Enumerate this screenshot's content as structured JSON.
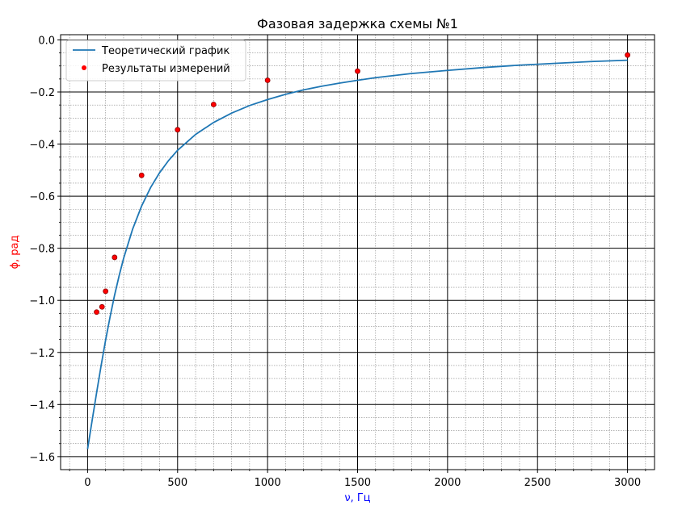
{
  "chart_data": {
    "type": "line",
    "title": "Фазовая задержка схемы №1",
    "xlabel": "ν, Гц",
    "ylabel": "ϕ, рад",
    "xlabel_color": "#0000ff",
    "ylabel_color": "#ff0000",
    "xlim": [
      -150,
      3150
    ],
    "ylim": [
      -1.65,
      0.02
    ],
    "x_ticks": [
      0,
      500,
      1000,
      1500,
      2000,
      2500,
      3000
    ],
    "x_tick_labels": [
      "0",
      "500",
      "1000",
      "1500",
      "2000",
      "2500",
      "3000"
    ],
    "y_ticks": [
      0.0,
      -0.2,
      -0.4,
      -0.6,
      -0.8,
      -1.0,
      -1.2,
      -1.4,
      -1.6
    ],
    "y_tick_labels": [
      "0.0",
      "−0.2",
      "−0.4",
      "−0.6",
      "−0.8",
      "−1.0",
      "−1.2",
      "−1.4",
      "−1.6"
    ],
    "x_minor_step": 100,
    "y_minor_step": 0.05,
    "grid": true,
    "legend_position": "top-left",
    "series": [
      {
        "name": "Теоретический график",
        "kind": "line",
        "color": "#1f77b4",
        "x": [
          0,
          25,
          50,
          75,
          100,
          125,
          150,
          175,
          200,
          250,
          300,
          350,
          400,
          450,
          500,
          600,
          700,
          800,
          900,
          1000,
          1100,
          1200,
          1300,
          1400,
          1500,
          1600,
          1800,
          2000,
          2200,
          2400,
          2600,
          2800,
          3000
        ],
        "y": [
          -1.571,
          -1.462,
          -1.355,
          -1.251,
          -1.153,
          -1.063,
          -0.98,
          -0.906,
          -0.839,
          -0.727,
          -0.638,
          -0.567,
          -0.51,
          -0.463,
          -0.424,
          -0.363,
          -0.317,
          -0.281,
          -0.252,
          -0.229,
          -0.209,
          -0.192,
          -0.178,
          -0.166,
          -0.155,
          -0.145,
          -0.129,
          -0.117,
          -0.106,
          -0.097,
          -0.09,
          -0.083,
          -0.078
        ]
      },
      {
        "name": "Результаты измерений",
        "kind": "scatter",
        "color": "#ff0000",
        "edge_color": "#8b0000",
        "x": [
          50,
          80,
          100,
          150,
          300,
          500,
          700,
          1000,
          1500,
          3000
        ],
        "y": [
          -1.045,
          -1.025,
          -0.965,
          -0.835,
          -0.52,
          -0.345,
          -0.248,
          -0.155,
          -0.12,
          -0.058
        ]
      }
    ]
  }
}
